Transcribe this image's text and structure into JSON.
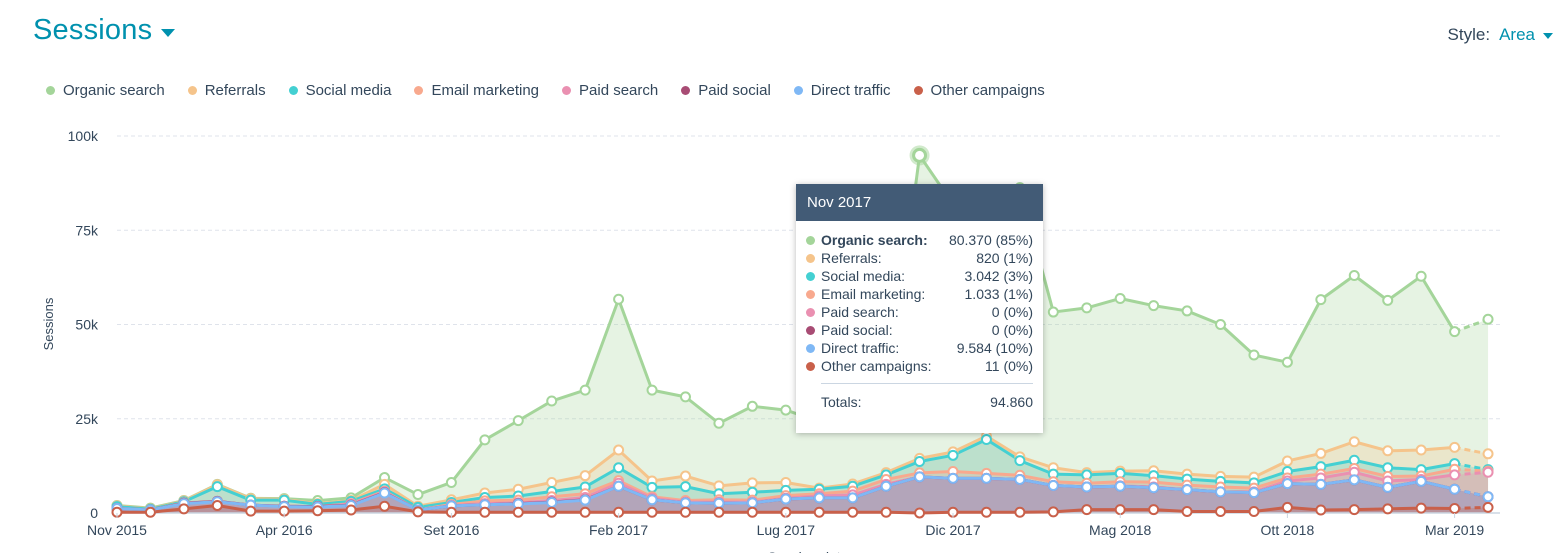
{
  "header": {
    "title": "Sessions",
    "style_label": "Style:",
    "style_value": "Area"
  },
  "chart_data": {
    "type": "area",
    "ylabel": "Sessions",
    "xlabel": "Session date",
    "ylim": [
      0,
      100000
    ],
    "y_ticks": [
      {
        "value": 0,
        "label": "0"
      },
      {
        "value": 25000,
        "label": "25k"
      },
      {
        "value": 50000,
        "label": "50k"
      },
      {
        "value": 75000,
        "label": "75k"
      },
      {
        "value": 100000,
        "label": "100k"
      }
    ],
    "x_tick_labels": [
      {
        "index": 0,
        "label": "Nov 2015"
      },
      {
        "index": 5,
        "label": "Apr 2016"
      },
      {
        "index": 10,
        "label": "Set 2016"
      },
      {
        "index": 15,
        "label": "Feb 2017"
      },
      {
        "index": 20,
        "label": "Lug 2017"
      },
      {
        "index": 25,
        "label": "Dic 2017"
      },
      {
        "index": 30,
        "label": "Mag 2018"
      },
      {
        "index": 35,
        "label": "Ott 2018"
      },
      {
        "index": 40,
        "label": "Mar 2019"
      }
    ],
    "grid": true,
    "legend_position": "top-left",
    "stacked": true,
    "highlight_index": 24,
    "projected_last_point": true,
    "series": [
      {
        "name": "Other campaigns",
        "color": "#c9604a",
        "values": [
          200,
          200,
          1100,
          2000,
          500,
          500,
          600,
          800,
          1800,
          300,
          200,
          200,
          200,
          200,
          200,
          200,
          200,
          200,
          200,
          200,
          200,
          200,
          200,
          200,
          11,
          200,
          200,
          200,
          300,
          900,
          900,
          900,
          400,
          400,
          400,
          1500,
          800,
          900,
          1100,
          1300,
          1200,
          1500
        ]
      },
      {
        "name": "Direct traffic",
        "color": "#7fb8f5",
        "values": [
          1000,
          600,
          1400,
          1000,
          1600,
          1200,
          1000,
          1200,
          3500,
          500,
          1700,
          2000,
          2200,
          2600,
          3200,
          6900,
          3300,
          2500,
          2400,
          2500,
          3500,
          3800,
          3800,
          6900,
          9584,
          9000,
          9000,
          8700,
          7000,
          6000,
          6200,
          5800,
          5800,
          5200,
          5000,
          6300,
          6800,
          7900,
          5700,
          7100,
          5100,
          2800
        ]
      },
      {
        "name": "Paid social",
        "color": "#a84c74",
        "values": [
          0,
          0,
          100,
          100,
          0,
          100,
          100,
          100,
          100,
          0,
          0,
          0,
          100,
          100,
          100,
          0,
          0,
          0,
          0,
          0,
          0,
          0,
          0,
          0,
          0,
          0,
          0,
          0,
          0,
          0,
          0,
          0,
          0,
          0,
          0,
          0,
          0,
          0,
          0,
          0,
          0,
          0
        ]
      },
      {
        "name": "Paid search",
        "color": "#ea90b1",
        "values": [
          0,
          0,
          0,
          0,
          0,
          0,
          0,
          300,
          200,
          0,
          100,
          300,
          200,
          400,
          600,
          800,
          400,
          200,
          300,
          200,
          200,
          500,
          800,
          500,
          0,
          0,
          0,
          0,
          0,
          0,
          100,
          200,
          0,
          0,
          200,
          700,
          1700,
          2000,
          1700,
          500,
          3800,
          6500
        ]
      },
      {
        "name": "Email marketing",
        "color": "#f8a98e",
        "values": [
          0,
          0,
          100,
          0,
          0,
          0,
          0,
          100,
          200,
          0,
          300,
          700,
          700,
          1000,
          1000,
          700,
          400,
          400,
          600,
          500,
          700,
          600,
          1000,
          1300,
          1033,
          1800,
          1300,
          1100,
          1000,
          1000,
          1100,
          1300,
          1200,
          1300,
          1000,
          800,
          1000,
          1000,
          1200,
          900,
          1500,
          300
        ]
      },
      {
        "name": "Social media",
        "color": "#44d0d2",
        "values": [
          500,
          200,
          300,
          3900,
          1300,
          1600,
          600,
          600,
          600,
          700,
          500,
          900,
          1100,
          1400,
          1800,
          3400,
          2500,
          3700,
          1600,
          2100,
          1400,
          1200,
          1300,
          1200,
          3042,
          4300,
          9000,
          3900,
          2000,
          2200,
          2200,
          1700,
          1600,
          1500,
          1400,
          1700,
          2000,
          2200,
          2300,
          1700,
          1500,
          400
        ]
      },
      {
        "name": "Referrals",
        "color": "#f5c48b",
        "values": [
          200,
          100,
          200,
          500,
          400,
          200,
          200,
          200,
          1200,
          300,
          700,
          1200,
          1800,
          2400,
          3000,
          4700,
          1700,
          2800,
          2100,
          2500,
          2100,
          300,
          600,
          600,
          820,
          900,
          900,
          1000,
          1700,
          600,
          600,
          1300,
          1300,
          1300,
          1500,
          2800,
          3500,
          4900,
          4500,
          5200,
          4300,
          4200
        ]
      },
      {
        "name": "Organic search",
        "color": "#a4d59a",
        "values": [
          100,
          200,
          100,
          100,
          100,
          200,
          800,
          700,
          1800,
          3100,
          4600,
          14100,
          18200,
          21600,
          22700,
          40000,
          24100,
          21000,
          16600,
          20300,
          19200,
          17700,
          17200,
          16800,
          80370,
          65700,
          63200,
          71400,
          41300,
          43700,
          45800,
          43800,
          43300,
          40300,
          32400,
          26200,
          40800,
          44100,
          39900,
          46100,
          30700,
          35700
        ]
      }
    ]
  },
  "legend": [
    {
      "name": "Organic search",
      "color": "#a4d59a"
    },
    {
      "name": "Referrals",
      "color": "#f5c48b"
    },
    {
      "name": "Social media",
      "color": "#44d0d2"
    },
    {
      "name": "Email marketing",
      "color": "#f8a98e"
    },
    {
      "name": "Paid search",
      "color": "#ea90b1"
    },
    {
      "name": "Paid social",
      "color": "#a84c74"
    },
    {
      "name": "Direct traffic",
      "color": "#7fb8f5"
    },
    {
      "name": "Other campaigns",
      "color": "#c9604a"
    }
  ],
  "tooltip": {
    "title": "Nov 2017",
    "rows": [
      {
        "name": "Organic search:",
        "value": "80.370 (85%)",
        "color": "#a4d59a",
        "bold": true
      },
      {
        "name": "Referrals:",
        "value": "820 (1%)",
        "color": "#f5c48b"
      },
      {
        "name": "Social media:",
        "value": "3.042 (3%)",
        "color": "#44d0d2"
      },
      {
        "name": "Email marketing:",
        "value": "1.033 (1%)",
        "color": "#f8a98e"
      },
      {
        "name": "Paid search:",
        "value": "0 (0%)",
        "color": "#ea90b1"
      },
      {
        "name": "Paid social:",
        "value": "0 (0%)",
        "color": "#a84c74"
      },
      {
        "name": "Direct traffic:",
        "value": "9.584 (10%)",
        "color": "#7fb8f5"
      },
      {
        "name": "Other campaigns:",
        "value": "11 (0%)",
        "color": "#c9604a"
      }
    ],
    "total_label": "Totals:",
    "total_value": "94.860"
  }
}
